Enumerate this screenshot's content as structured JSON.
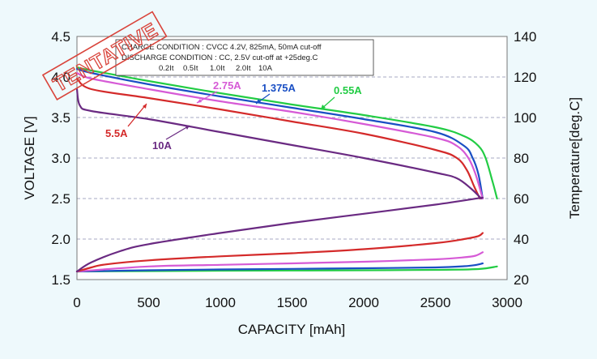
{
  "stamp": "TENTATIVE",
  "conditions": {
    "charge": "CHARGE CONDITION      : CVCC 4.2V, 825mA, 50mA cut-off",
    "discharge": "DISCHARGE CONDITION : CC,    2.5V cut-off at +25deg.C",
    "rates": [
      {
        "text": "0.2It",
        "color": "#22cc44"
      },
      {
        "text": "0.5It",
        "color": "#1a4fc4"
      },
      {
        "text": "1.0It",
        "color": "#d65ad6"
      },
      {
        "text": "2.0It",
        "color": "#d42a2a"
      },
      {
        "text": "10A",
        "color": "#6a2a82"
      }
    ]
  },
  "chart_data": {
    "type": "line",
    "xlabel": "CAPACITY [mAh]",
    "ylabel": "VOLTAGE [V]",
    "y2label": "Temperature[deg.C]",
    "xlim": [
      0,
      3000
    ],
    "ylim": [
      1.5,
      4.5
    ],
    "y2lim": [
      20,
      140
    ],
    "xticks": [
      "0",
      "500",
      "1000",
      "1500",
      "2000",
      "2500",
      "3000"
    ],
    "yticks": [
      "1.5",
      "2.0",
      "2.5",
      "3.0",
      "3.5",
      "4.0",
      "4.5"
    ],
    "y2ticks": [
      "20",
      "40",
      "60",
      "80",
      "100",
      "120",
      "140"
    ],
    "grid": "horizontal dashed",
    "series": [
      {
        "name": "0.55A",
        "color": "#22cc44",
        "axis": "voltage",
        "x": [
          0,
          100,
          500,
          1000,
          1500,
          2000,
          2500,
          2700,
          2800,
          2850,
          2900,
          2930
        ],
        "y": [
          4.12,
          4.08,
          3.95,
          3.8,
          3.66,
          3.53,
          3.38,
          3.27,
          3.15,
          3.0,
          2.7,
          2.5
        ]
      },
      {
        "name": "1.375A",
        "color": "#1a4fc4",
        "axis": "voltage",
        "x": [
          0,
          100,
          500,
          1000,
          1500,
          2000,
          2500,
          2700,
          2760,
          2800,
          2830
        ],
        "y": [
          4.1,
          4.05,
          3.91,
          3.76,
          3.62,
          3.48,
          3.32,
          3.15,
          3.0,
          2.8,
          2.5
        ]
      },
      {
        "name": "2.75A",
        "color": "#d65ad6",
        "axis": "voltage",
        "x": [
          0,
          100,
          500,
          1000,
          1500,
          2000,
          2500,
          2650,
          2730,
          2780,
          2830
        ],
        "y": [
          4.05,
          3.98,
          3.85,
          3.7,
          3.57,
          3.42,
          3.25,
          3.15,
          3.0,
          2.8,
          2.5
        ]
      },
      {
        "name": "5.5A",
        "color": "#d42a2a",
        "axis": "voltage",
        "x": [
          0,
          100,
          500,
          1000,
          1500,
          2000,
          2500,
          2650,
          2720,
          2770,
          2810
        ],
        "y": [
          3.98,
          3.85,
          3.74,
          3.6,
          3.45,
          3.3,
          3.1,
          3.0,
          2.85,
          2.65,
          2.5
        ]
      },
      {
        "name": "10A",
        "color": "#6a2a82",
        "axis": "voltage",
        "x": [
          0,
          20,
          100,
          500,
          1000,
          1500,
          2000,
          2500,
          2650,
          2750,
          2820
        ],
        "y": [
          3.85,
          3.65,
          3.58,
          3.48,
          3.32,
          3.16,
          3.0,
          2.82,
          2.75,
          2.62,
          2.5
        ]
      },
      {
        "name": "0.2It temp",
        "color": "#22cc44",
        "axis": "temperature",
        "x": [
          0,
          500,
          1000,
          1500,
          2000,
          2500,
          2800,
          2930
        ],
        "y": [
          24,
          24.2,
          24.4,
          24.5,
          24.6,
          24.8,
          25.2,
          26.5
        ]
      },
      {
        "name": "0.5It temp",
        "color": "#1a4fc4",
        "axis": "temperature",
        "x": [
          0,
          500,
          1000,
          1500,
          2000,
          2500,
          2700,
          2780,
          2830
        ],
        "y": [
          24,
          24.6,
          25,
          25.3,
          25.6,
          26,
          26.6,
          27.2,
          28
        ]
      },
      {
        "name": "1.0It temp",
        "color": "#d65ad6",
        "axis": "temperature",
        "x": [
          0,
          500,
          1000,
          1500,
          2000,
          2500,
          2700,
          2780,
          2830
        ],
        "y": [
          24,
          26.5,
          27.3,
          28.0,
          28.8,
          30,
          31,
          31.8,
          33.5
        ]
      },
      {
        "name": "2.0It temp",
        "color": "#d42a2a",
        "axis": "temperature",
        "x": [
          0,
          100,
          200,
          500,
          1000,
          1500,
          2000,
          2500,
          2700,
          2800,
          2830
        ],
        "y": [
          24,
          26,
          27.5,
          29.5,
          31.5,
          33,
          35,
          38,
          40,
          41.5,
          43
        ]
      },
      {
        "name": "10A temp",
        "color": "#6a2a82",
        "axis": "temperature",
        "x": [
          0,
          100,
          300,
          500,
          1000,
          1500,
          2000,
          2500,
          2830
        ],
        "y": [
          24,
          28.5,
          34,
          37.5,
          43,
          48,
          52.5,
          57,
          60.5
        ]
      }
    ],
    "annotations": [
      {
        "text": "0.55A",
        "color": "#22cc44"
      },
      {
        "text": "1.375A",
        "color": "#1a4fc4"
      },
      {
        "text": "2.75A",
        "color": "#d65ad6"
      },
      {
        "text": "5.5A",
        "color": "#d42a2a"
      },
      {
        "text": "10A",
        "color": "#6a2a82"
      }
    ]
  }
}
